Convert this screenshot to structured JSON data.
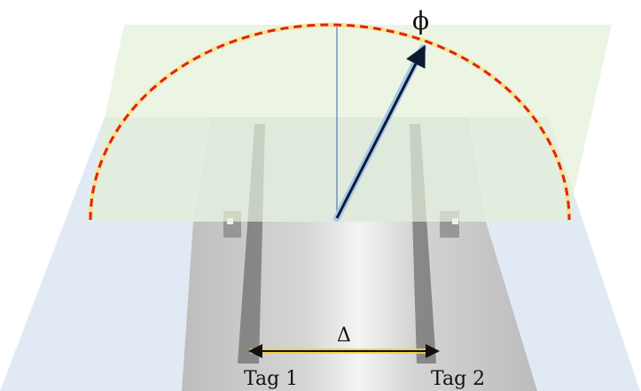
{
  "labels": {
    "angle": "ϕ",
    "spacing": "Δ",
    "tag1": "Tag 1",
    "tag2": "Tag 2"
  },
  "colors": {
    "arc": "#e02020",
    "arc_glow": "#f6e27a",
    "vertical_plane": "#e4efd9",
    "horizontal_plane": "#dce6f2",
    "vector": "#0b1a33",
    "vector_glow": "#a9c6e8",
    "spacing_arrow": "#111111",
    "spacing_glow": "#f2d23a",
    "reference_line": "#3a66b0",
    "substrate": "#cfcfcf",
    "tag_strip": "#7a7a7a"
  }
}
